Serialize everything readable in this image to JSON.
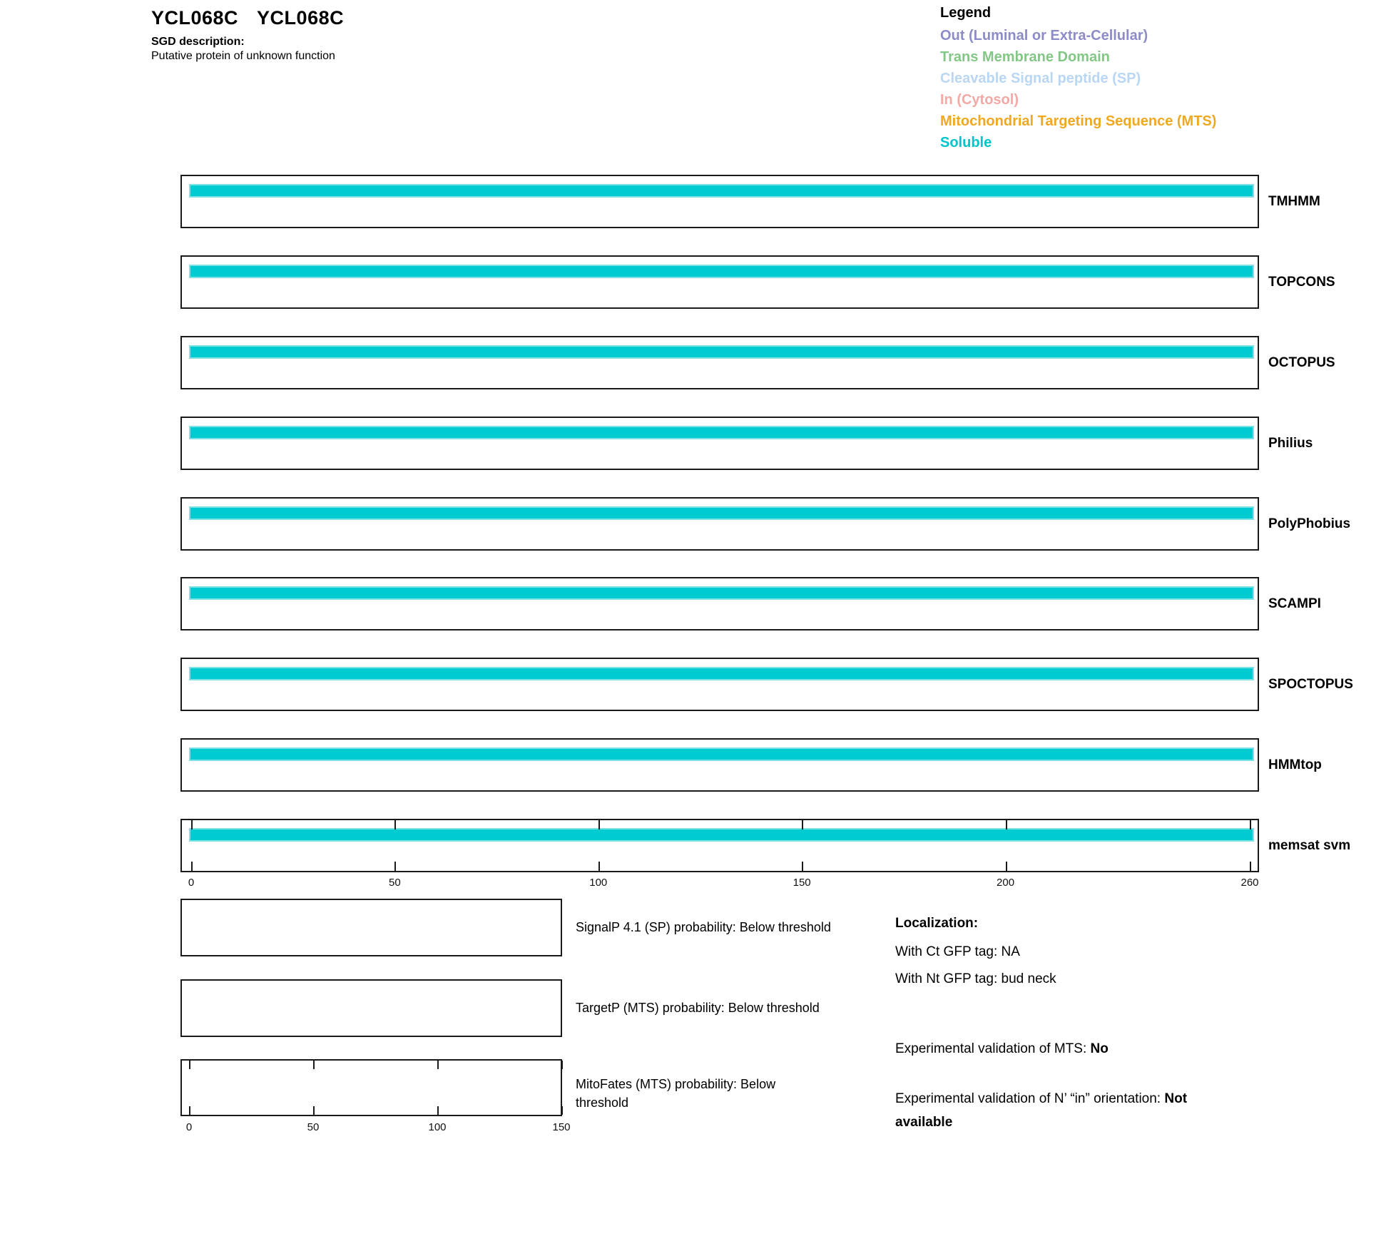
{
  "header": {
    "gene_systematic": "YCL068C",
    "gene_standard": "YCL068C",
    "sgd_label": "SGD description:",
    "sgd_description": "Putative protein of unknown function"
  },
  "legend": {
    "title": "Legend",
    "entries": [
      {
        "label": "Out (Luminal or Extra-Cellular)",
        "color": "#8C8CC8"
      },
      {
        "label": "Trans Membrane Domain",
        "color": "#82C785"
      },
      {
        "label": "Cleavable Signal peptide (SP)",
        "color": "#B9D6F2"
      },
      {
        "label": "In (Cytosol)",
        "color": "#F2A9A6"
      },
      {
        "label": "Mitochondrial Targeting Sequence (MTS)",
        "color": "#EFA820"
      },
      {
        "label": "Soluble",
        "color": "#00C4C9"
      }
    ]
  },
  "tracks": {
    "items": [
      {
        "label": "TMHMM"
      },
      {
        "label": "TOPCONS"
      },
      {
        "label": "OCTOPUS"
      },
      {
        "label": "Philius"
      },
      {
        "label": "PolyPhobius"
      },
      {
        "label": "SCAMPI"
      },
      {
        "label": "SPOCTOPUS"
      },
      {
        "label": "HMMtop"
      },
      {
        "label": "memsat svm"
      }
    ],
    "bar_color": "#00CBD0",
    "bar_edge_color": "#7CE2E5",
    "axis_ticks": [
      "0",
      "50",
      "100",
      "150",
      "200",
      "260"
    ]
  },
  "probability_boxes": [
    {
      "lines": [
        "SignalP 4.1 (SP) probability: Below threshold"
      ]
    },
    {
      "lines": [
        "TargetP (MTS) probability: Below threshold"
      ]
    },
    {
      "lines": [
        "MitoFates (MTS) probability: Below",
        "threshold"
      ],
      "axis_ticks": [
        "0",
        "50",
        "100",
        "150"
      ]
    }
  ],
  "localization": {
    "title": "Localization:",
    "ct_line": "With Ct GFP tag: NA",
    "nt_line": "With Nt GFP tag: bud neck",
    "mts_label": "Experimental validation of MTS: ",
    "mts_value": "No",
    "orientation_label": "Experimental validation of N’ “in” orientation: ",
    "orientation_value": "Not available"
  },
  "chart_data": {
    "type": "bar",
    "title": "YCL068C YCL068C",
    "subtitle": "Putative protein of unknown function",
    "legend_position": "top-right",
    "legend_entries": [
      "Out (Luminal or Extra-Cellular)",
      "Trans Membrane Domain",
      "Cleavable Signal peptide (SP)",
      "In (Cytosol)",
      "Mitochondrial Targeting Sequence (MTS)",
      "Soluble"
    ],
    "x_axis": {
      "range": [
        0,
        260
      ],
      "ticks": [
        0,
        50,
        100,
        150,
        200,
        260
      ]
    },
    "categories": [
      "TMHMM",
      "TOPCONS",
      "OCTOPUS",
      "Philius",
      "PolyPhobius",
      "SCAMPI",
      "SPOCTOPUS",
      "HMMtop",
      "memsat svm"
    ],
    "series": [
      {
        "name": "TMHMM",
        "segments": [
          {
            "class": "Soluble",
            "start": 0,
            "end": 260
          }
        ]
      },
      {
        "name": "TOPCONS",
        "segments": [
          {
            "class": "Soluble",
            "start": 0,
            "end": 260
          }
        ]
      },
      {
        "name": "OCTOPUS",
        "segments": [
          {
            "class": "Soluble",
            "start": 0,
            "end": 260
          }
        ]
      },
      {
        "name": "Philius",
        "segments": [
          {
            "class": "Soluble",
            "start": 0,
            "end": 260
          }
        ]
      },
      {
        "name": "PolyPhobius",
        "segments": [
          {
            "class": "Soluble",
            "start": 0,
            "end": 260
          }
        ]
      },
      {
        "name": "SCAMPI",
        "segments": [
          {
            "class": "Soluble",
            "start": 0,
            "end": 260
          }
        ]
      },
      {
        "name": "SPOCTOPUS",
        "segments": [
          {
            "class": "Soluble",
            "start": 0,
            "end": 260
          }
        ]
      },
      {
        "name": "HMMtop",
        "segments": [
          {
            "class": "Soluble",
            "start": 0,
            "end": 260
          }
        ]
      },
      {
        "name": "memsat svm",
        "segments": [
          {
            "class": "Soluble",
            "start": 0,
            "end": 260
          }
        ]
      }
    ],
    "probability_plots": [
      {
        "name": "SignalP 4.1 (SP)",
        "status": "Below threshold",
        "values": []
      },
      {
        "name": "TargetP (MTS)",
        "status": "Below threshold",
        "values": []
      },
      {
        "name": "MitoFates (MTS)",
        "status": "Below threshold",
        "x_ticks": [
          0,
          50,
          100,
          150
        ],
        "values": []
      }
    ]
  }
}
